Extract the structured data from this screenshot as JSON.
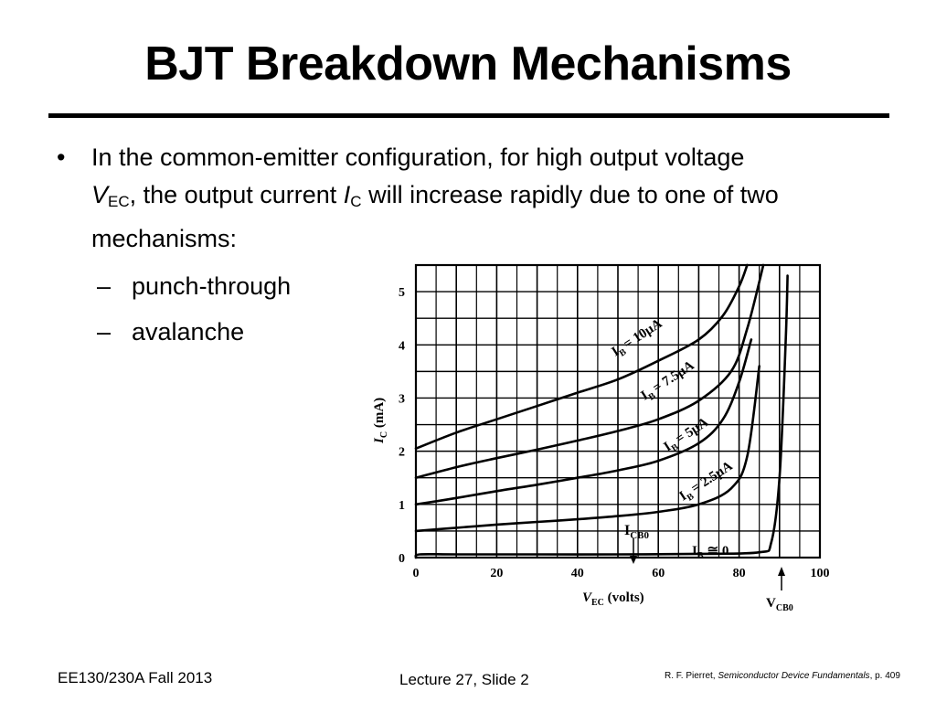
{
  "slide": {
    "title": "BJT Breakdown Mechanisms",
    "bullet": {
      "line1": "In the common-emitter configuration, for high output voltage",
      "v": "V",
      "v_sub": "EC",
      "mid": ", the output current ",
      "i": "I",
      "i_sub": "C",
      "end": " will increase rapidly due to one of two mechanisms:"
    },
    "sub_bullets": [
      "punch-through",
      "avalanche"
    ],
    "bullet_marker": "•",
    "dash_marker": "–"
  },
  "footer": {
    "left": "EE130/230A Fall 2013",
    "center": "Lecture 27, Slide 2",
    "ref_author": "R. F. Pierret, ",
    "ref_book": "Semiconductor Device Fundamentals",
    "ref_page": ", p. 409"
  },
  "chart_data": {
    "type": "line",
    "xlabel": "V_EC (volts)",
    "ylabel": "I_C (mA)",
    "xlim": [
      0,
      100
    ],
    "ylim": [
      0,
      5.5
    ],
    "x_ticks": [
      0,
      20,
      40,
      60,
      80,
      100
    ],
    "y_ticks": [
      0,
      1,
      2,
      3,
      4,
      5
    ],
    "grid": true,
    "series": [
      {
        "name": "I_B = 10µA",
        "x": [
          0,
          10,
          20,
          30,
          40,
          50,
          60,
          70,
          76,
          80,
          82
        ],
        "y": [
          2.05,
          2.35,
          2.6,
          2.85,
          3.1,
          3.35,
          3.7,
          4.1,
          4.55,
          5.1,
          5.5
        ]
      },
      {
        "name": "I_B = 7.5µA",
        "x": [
          0,
          10,
          20,
          30,
          40,
          50,
          60,
          70,
          78,
          82,
          86
        ],
        "y": [
          1.5,
          1.7,
          1.87,
          2.03,
          2.2,
          2.38,
          2.6,
          2.95,
          3.5,
          4.3,
          5.5
        ]
      },
      {
        "name": "I_B = 5µA",
        "x": [
          0,
          10,
          20,
          30,
          40,
          50,
          60,
          70,
          76,
          80,
          83
        ],
        "y": [
          1.0,
          1.12,
          1.25,
          1.37,
          1.5,
          1.64,
          1.82,
          2.15,
          2.6,
          3.3,
          4.1
        ]
      },
      {
        "name": "I_B = 2.5µA",
        "x": [
          0,
          10,
          20,
          30,
          40,
          50,
          60,
          70,
          78,
          82,
          85
        ],
        "y": [
          0.5,
          0.56,
          0.62,
          0.67,
          0.72,
          0.78,
          0.86,
          1.0,
          1.3,
          1.9,
          3.6
        ]
      },
      {
        "name": "I_B ≅ 0",
        "x": [
          0,
          1,
          10,
          30,
          50,
          70,
          85,
          88,
          90,
          91.5,
          92
        ],
        "y": [
          0.0,
          0.06,
          0.06,
          0.06,
          0.06,
          0.07,
          0.1,
          0.3,
          1.5,
          4.0,
          5.3
        ]
      }
    ],
    "curve_labels": {
      "ib10": "I",
      "ib10_sub": "B",
      "ib10_val": "= 10µA",
      "ib75": "I",
      "ib75_sub": "B",
      "ib75_val": "= 7.5µA",
      "ib5": "I",
      "ib5_sub": "B",
      "ib5_val": "= 5µA",
      "ib25": "I",
      "ib25_sub": "B",
      "ib25_val": "= 2.5µA",
      "ib0": "I",
      "ib0_sub": "B",
      "ib0_val": "≅ 0"
    },
    "annotations": {
      "icbo_main": "I",
      "icbo_sub": "CB0",
      "vcbo_main": "V",
      "vcbo_sub": "CB0",
      "xlabel_main": "V",
      "xlabel_sub": "EC",
      "xlabel_rest": " (volts)",
      "ylabel_main": "I",
      "ylabel_sub": "C",
      "ylabel_rest": " (mA)"
    }
  }
}
